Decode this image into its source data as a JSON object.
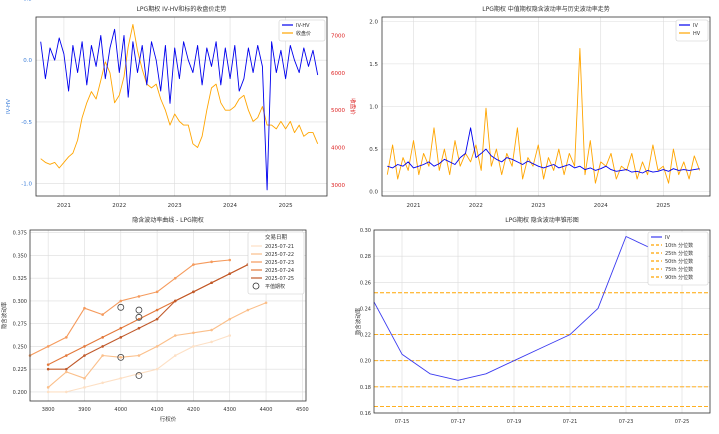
{
  "chart_data": [
    {
      "type": "line",
      "title": "LPG期权 IV-HV和标的收盘价走势",
      "ylabel": "IV-HV",
      "y2label": "收盘价",
      "xlim": [
        "2020-07-01",
        "2025-10-01"
      ],
      "ylim": [
        -1.1,
        0.35
      ],
      "y2lim": [
        2700,
        7500
      ],
      "yticks": [
        0.5,
        0.0,
        -0.5,
        -1.0
      ],
      "yticklabels": [
        "0.5",
        "0.0",
        "-0.5",
        "-1.0"
      ],
      "y2ticks": [
        3000,
        4000,
        5000,
        6000,
        7000
      ],
      "y2ticklabels": [
        "3000",
        "4000",
        "5000",
        "6000",
        "7000"
      ],
      "xticks": [
        "2021-01-01",
        "2022-01-01",
        "2023-01-01",
        "2024-01-01",
        "2025-01-01"
      ],
      "xticklabels": [
        "2021",
        "2022",
        "2023",
        "2024",
        "2025"
      ],
      "legend": "top-right",
      "grid": true,
      "colors": {
        "ivhv": "#0000ee",
        "close": "#ffa500",
        "y2axis": "#dd2222",
        "yaxis": "#3b7dd8"
      },
      "series": [
        {
          "name": "IV-HV",
          "axis": "left",
          "x": [
            "2020-08-01",
            "2020-09-01",
            "2020-10-01",
            "2020-11-01",
            "2020-12-01",
            "2021-01-01",
            "2021-02-01",
            "2021-03-01",
            "2021-04-01",
            "2021-05-01",
            "2021-06-01",
            "2021-07-01",
            "2021-08-01",
            "2021-09-01",
            "2021-10-01",
            "2021-11-01",
            "2021-12-01",
            "2022-01-01",
            "2022-02-01",
            "2022-03-01",
            "2022-04-01",
            "2022-05-01",
            "2022-06-01",
            "2022-07-01",
            "2022-08-01",
            "2022-09-01",
            "2022-10-01",
            "2022-11-01",
            "2022-12-01",
            "2023-01-01",
            "2023-02-01",
            "2023-03-01",
            "2023-04-01",
            "2023-05-01",
            "2023-06-01",
            "2023-07-01",
            "2023-08-01",
            "2023-09-01",
            "2023-10-01",
            "2023-11-01",
            "2023-12-01",
            "2024-01-01",
            "2024-02-01",
            "2024-03-01",
            "2024-04-01",
            "2024-05-01",
            "2024-06-01",
            "2024-07-01",
            "2024-08-01",
            "2024-09-01",
            "2024-10-01",
            "2024-11-01",
            "2024-12-01",
            "2025-01-01",
            "2025-02-01",
            "2025-03-01",
            "2025-04-01",
            "2025-05-01",
            "2025-06-01",
            "2025-07-01",
            "2025-08-01"
          ],
          "values": [
            0.15,
            -0.15,
            0.1,
            0.0,
            0.18,
            0.05,
            -0.25,
            0.12,
            -0.1,
            0.15,
            -0.2,
            0.12,
            -0.05,
            0.2,
            -0.15,
            0.1,
            0.25,
            -0.1,
            0.2,
            -0.3,
            0.15,
            -0.1,
            0.12,
            -0.2,
            0.15,
            0.0,
            -0.25,
            0.12,
            -0.35,
            0.1,
            -0.15,
            0.15,
            0.0,
            -0.1,
            0.12,
            -0.2,
            0.1,
            -0.05,
            0.15,
            -0.2,
            0.1,
            -0.15,
            0.12,
            -0.25,
            -0.15,
            0.1,
            -0.1,
            0.12,
            -0.05,
            -1.05,
            0.15,
            -0.1,
            0.08,
            -0.15,
            0.12,
            0.0,
            -0.1,
            0.1,
            -0.05,
            0.08,
            -0.12
          ]
        },
        {
          "name": "收盘价",
          "axis": "right",
          "x": [
            "2020-08-01",
            "2020-09-01",
            "2020-10-01",
            "2020-11-01",
            "2020-12-01",
            "2021-01-01",
            "2021-02-01",
            "2021-03-01",
            "2021-04-01",
            "2021-05-01",
            "2021-06-01",
            "2021-07-01",
            "2021-08-01",
            "2021-09-01",
            "2021-10-01",
            "2021-11-01",
            "2021-12-01",
            "2022-01-01",
            "2022-02-01",
            "2022-03-01",
            "2022-04-01",
            "2022-05-01",
            "2022-06-01",
            "2022-07-01",
            "2022-08-01",
            "2022-09-01",
            "2022-10-01",
            "2022-11-01",
            "2022-12-01",
            "2023-01-01",
            "2023-02-01",
            "2023-03-01",
            "2023-04-01",
            "2023-05-01",
            "2023-06-01",
            "2023-07-01",
            "2023-08-01",
            "2023-09-01",
            "2023-10-01",
            "2023-11-01",
            "2023-12-01",
            "2024-01-01",
            "2024-02-01",
            "2024-03-01",
            "2024-04-01",
            "2024-05-01",
            "2024-06-01",
            "2024-07-01",
            "2024-08-01",
            "2024-09-01",
            "2024-10-01",
            "2024-11-01",
            "2024-12-01",
            "2025-01-01",
            "2025-02-01",
            "2025-03-01",
            "2025-04-01",
            "2025-05-01",
            "2025-06-01",
            "2025-07-01",
            "2025-08-01"
          ],
          "values": [
            3700,
            3600,
            3550,
            3600,
            3450,
            3600,
            3750,
            3850,
            4200,
            4800,
            5200,
            5500,
            5300,
            5800,
            6300,
            6000,
            5200,
            5400,
            5900,
            6700,
            7300,
            6600,
            6100,
            5700,
            5600,
            5700,
            5300,
            5000,
            4600,
            4900,
            4700,
            4600,
            4600,
            4100,
            4000,
            4300,
            5000,
            5600,
            5700,
            5200,
            5000,
            5000,
            5100,
            5300,
            5400,
            5000,
            4700,
            4800,
            5100,
            4600,
            4600,
            4500,
            4700,
            4500,
            4700,
            4400,
            4600,
            4300,
            4400,
            4400,
            4100
          ]
        }
      ]
    },
    {
      "type": "line",
      "title": "LPG期权 中值期权隐含波动率与历史波动率走势",
      "xlim": [
        "2020-07-01",
        "2025-10-01"
      ],
      "ylim": [
        -0.05,
        2.05
      ],
      "yticks": [
        0.0,
        0.5,
        1.0,
        1.5,
        2.0
      ],
      "yticklabels": [
        "0.0",
        "0.5",
        "1.0",
        "1.5",
        "2.0"
      ],
      "xticks": [
        "2021-01-01",
        "2022-01-01",
        "2023-01-01",
        "2024-01-01",
        "2025-01-01"
      ],
      "xticklabels": [
        "2021",
        "2022",
        "2023",
        "2024",
        "2025"
      ],
      "legend": "top-right",
      "grid": true,
      "colors": {
        "iv": "#0000ee",
        "hv": "#ffa500"
      },
      "series": [
        {
          "name": "IV",
          "x": [
            "2020-08-01",
            "2020-09-01",
            "2020-10-01",
            "2020-11-01",
            "2020-12-01",
            "2021-01-01",
            "2021-02-01",
            "2021-03-01",
            "2021-04-01",
            "2021-05-01",
            "2021-06-01",
            "2021-07-01",
            "2021-08-01",
            "2021-09-01",
            "2021-10-01",
            "2021-11-01",
            "2021-12-01",
            "2022-01-01",
            "2022-02-01",
            "2022-03-01",
            "2022-04-01",
            "2022-05-01",
            "2022-06-01",
            "2022-07-01",
            "2022-08-01",
            "2022-09-01",
            "2022-10-01",
            "2022-11-01",
            "2022-12-01",
            "2023-01-01",
            "2023-02-01",
            "2023-03-01",
            "2023-04-01",
            "2023-05-01",
            "2023-06-01",
            "2023-07-01",
            "2023-08-01",
            "2023-09-01",
            "2023-10-01",
            "2023-11-01",
            "2023-12-01",
            "2024-01-01",
            "2024-02-01",
            "2024-03-01",
            "2024-04-01",
            "2024-05-01",
            "2024-06-01",
            "2024-07-01",
            "2024-08-01",
            "2024-09-01",
            "2024-10-01",
            "2024-11-01",
            "2024-12-01",
            "2025-01-01",
            "2025-02-01",
            "2025-03-01",
            "2025-04-01",
            "2025-05-01",
            "2025-06-01",
            "2025-07-01",
            "2025-08-01"
          ],
          "values": [
            0.3,
            0.28,
            0.32,
            0.3,
            0.35,
            0.28,
            0.3,
            0.32,
            0.35,
            0.3,
            0.33,
            0.38,
            0.35,
            0.32,
            0.4,
            0.45,
            0.75,
            0.4,
            0.45,
            0.5,
            0.42,
            0.38,
            0.35,
            0.4,
            0.38,
            0.35,
            0.32,
            0.36,
            0.33,
            0.3,
            0.28,
            0.3,
            0.32,
            0.28,
            0.3,
            0.32,
            0.28,
            0.3,
            0.26,
            0.28,
            0.25,
            0.27,
            0.3,
            0.26,
            0.24,
            0.25,
            0.26,
            0.23,
            0.24,
            0.22,
            0.25,
            0.23,
            0.24,
            0.26,
            0.24,
            0.27,
            0.25,
            0.26,
            0.25,
            0.26,
            0.27
          ]
        },
        {
          "name": "HV",
          "x": [
            "2020-08-01",
            "2020-09-01",
            "2020-10-01",
            "2020-11-01",
            "2020-12-01",
            "2021-01-01",
            "2021-02-01",
            "2021-03-01",
            "2021-04-01",
            "2021-05-01",
            "2021-06-01",
            "2021-07-01",
            "2021-08-01",
            "2021-09-01",
            "2021-10-01",
            "2021-11-01",
            "2021-12-01",
            "2022-01-01",
            "2022-02-01",
            "2022-03-01",
            "2022-04-01",
            "2022-05-01",
            "2022-06-01",
            "2022-07-01",
            "2022-08-01",
            "2022-09-01",
            "2022-10-01",
            "2022-11-01",
            "2022-12-01",
            "2023-01-01",
            "2023-02-01",
            "2023-03-01",
            "2023-04-01",
            "2023-05-01",
            "2023-06-01",
            "2023-07-01",
            "2023-08-01",
            "2023-09-01",
            "2023-10-01",
            "2023-11-01",
            "2023-12-01",
            "2024-01-01",
            "2024-02-01",
            "2024-03-01",
            "2024-04-01",
            "2024-05-01",
            "2024-06-01",
            "2024-07-01",
            "2024-08-01",
            "2024-09-01",
            "2024-10-01",
            "2024-11-01",
            "2024-12-01",
            "2025-01-01",
            "2025-02-01",
            "2025-03-01",
            "2025-04-01",
            "2025-05-01",
            "2025-06-01",
            "2025-07-01",
            "2025-08-01"
          ],
          "values": [
            0.2,
            0.55,
            0.15,
            0.4,
            0.25,
            0.6,
            0.2,
            0.45,
            0.3,
            0.75,
            0.25,
            0.5,
            0.2,
            0.6,
            0.3,
            0.45,
            0.35,
            0.55,
            0.25,
            0.98,
            0.3,
            0.5,
            0.2,
            0.45,
            0.3,
            0.75,
            0.15,
            0.4,
            0.3,
            0.55,
            0.15,
            0.4,
            0.25,
            0.5,
            0.2,
            0.45,
            0.3,
            1.68,
            0.2,
            0.6,
            0.1,
            0.35,
            0.3,
            0.45,
            0.15,
            0.3,
            0.25,
            0.45,
            0.15,
            0.35,
            0.2,
            0.55,
            0.25,
            0.3,
            0.1,
            0.5,
            0.2,
            0.35,
            0.15,
            0.42,
            0.25
          ]
        }
      ]
    },
    {
      "type": "line",
      "title": "隐含波动率曲线 - LPG期权",
      "xlabel": "行权价",
      "ylabel": "隐含波动率",
      "xlim": [
        3750,
        4510
      ],
      "ylim": [
        0.19,
        0.378
      ],
      "xticks": [
        3800,
        3900,
        4000,
        4100,
        4200,
        4300,
        4400,
        4500
      ],
      "xticklabels": [
        "3800",
        "3900",
        "4000",
        "4100",
        "4200",
        "4300",
        "4400",
        "4500"
      ],
      "yticks": [
        0.2,
        0.225,
        0.25,
        0.275,
        0.3,
        0.325,
        0.35,
        0.375
      ],
      "yticklabels": [
        "0.200",
        "0.225",
        "0.250",
        "0.275",
        "0.300",
        "0.325",
        "0.350",
        "0.375"
      ],
      "legend": "top-right",
      "legend_title": "交易日期",
      "grid": true,
      "x": [
        3750,
        3800,
        3850,
        3900,
        3950,
        4000,
        4050,
        4100,
        4150,
        4200,
        4250,
        4300,
        4350,
        4400,
        4450,
        4500
      ],
      "series": [
        {
          "name": "2025-07-21",
          "color": "#fde0c5",
          "values": [
            null,
            0.2,
            0.2,
            0.205,
            0.21,
            0.215,
            0.22,
            0.225,
            0.24,
            0.25,
            0.255,
            0.262,
            null,
            null,
            null,
            null
          ]
        },
        {
          "name": "2025-07-22",
          "color": "#fbbf8a",
          "values": [
            null,
            0.205,
            0.222,
            0.215,
            0.24,
            0.238,
            0.24,
            0.25,
            0.262,
            0.265,
            0.268,
            0.28,
            0.29,
            0.298,
            null,
            null
          ]
        },
        {
          "name": "2025-07-23",
          "color": "#f59a5c",
          "values": [
            0.24,
            0.25,
            0.26,
            0.292,
            0.285,
            0.3,
            0.305,
            0.31,
            0.325,
            0.34,
            0.343,
            0.345,
            null,
            null,
            null,
            null
          ]
        },
        {
          "name": "2025-07-24",
          "color": "#e3783a",
          "values": [
            null,
            0.23,
            0.24,
            0.25,
            0.26,
            0.27,
            0.28,
            0.29,
            0.3,
            0.31,
            0.32,
            0.33,
            0.34,
            0.345,
            null,
            null
          ]
        },
        {
          "name": "2025-07-25",
          "color": "#c0592a",
          "values": [
            null,
            0.225,
            0.225,
            0.24,
            0.25,
            0.26,
            0.27,
            0.28,
            0.3,
            0.31,
            0.32,
            0.33,
            0.34,
            0.35,
            0.355,
            0.36
          ]
        }
      ],
      "atm_label": "平值期权",
      "atm_points": [
        {
          "x": 4000,
          "y": 0.293
        },
        {
          "x": 4000,
          "y": 0.238
        },
        {
          "x": 4050,
          "y": 0.29
        },
        {
          "x": 4050,
          "y": 0.282
        },
        {
          "x": 4050,
          "y": 0.218
        }
      ]
    },
    {
      "type": "line",
      "title": "LPG期权 隐含波动率锥形图",
      "ylabel": "隐含波动率",
      "xlim": [
        "07-14",
        "07-26"
      ],
      "ylim": [
        0.16,
        0.3
      ],
      "yticks": [
        0.16,
        0.18,
        0.2,
        0.22,
        0.24,
        0.26,
        0.28,
        0.3
      ],
      "yticklabels": [
        "0.16",
        "0.18",
        "0.20",
        "0.22",
        "0.24",
        "0.26",
        "0.28",
        "0.30"
      ],
      "xticks": [
        "07-15",
        "07-17",
        "07-19",
        "07-21",
        "07-23",
        "07-25"
      ],
      "xticklabels": [
        "07-15",
        "07-17",
        "07-19",
        "07-21",
        "07-23",
        "07-25"
      ],
      "legend": "top-right",
      "grid": true,
      "colors": {
        "iv": "#3b3bf0",
        "pct": "#ffa500"
      },
      "series": [
        {
          "name": "IV",
          "x": [
            "07-14",
            "07-15",
            "07-16",
            "07-17",
            "07-18",
            "07-19",
            "07-20",
            "07-21",
            "07-22",
            "07-23",
            "07-24"
          ],
          "values": [
            0.245,
            0.205,
            0.19,
            0.185,
            0.19,
            0.2,
            0.21,
            0.22,
            0.24,
            0.295,
            0.285
          ]
        }
      ],
      "percentiles": [
        {
          "name": "10th 分位数",
          "value": 0.165
        },
        {
          "name": "25th 分位数",
          "value": 0.18
        },
        {
          "name": "50th 分位数",
          "value": 0.2
        },
        {
          "name": "75th 分位数",
          "value": 0.22
        },
        {
          "name": "90th 分位数",
          "value": 0.252
        }
      ]
    }
  ]
}
